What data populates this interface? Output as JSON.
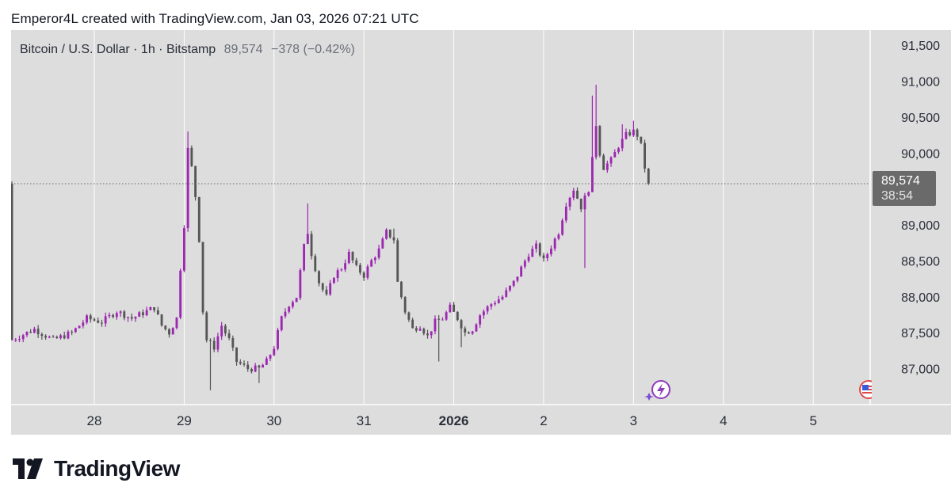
{
  "attribution": "Emperor4L created with TradingView.com, Jan 03, 2026 07:21 UTC",
  "legend": {
    "symbol": "Bitcoin / U.S. Dollar · 1h · Bitstamp",
    "last": "89,574",
    "change": "−378 (−0.42%)"
  },
  "price_tag": {
    "price": "89,574",
    "countdown": "38:54"
  },
  "brand": {
    "name": "TradingView"
  },
  "icons": {
    "bolt": "lightning-bolt-icon",
    "flag": "us-flag-icon",
    "logo": "tradingview-logo-icon"
  },
  "colors": {
    "up": "#9c27b0",
    "down": "#555555",
    "background": "#dddddd",
    "price_line": "#666666"
  },
  "chart_data": {
    "type": "candlestick",
    "ylim": [
      86500,
      91700
    ],
    "y_ticks": [
      {
        "value": 87000,
        "label": "87,000"
      },
      {
        "value": 87500,
        "label": "87,500"
      },
      {
        "value": 88000,
        "label": "88,000"
      },
      {
        "value": 88500,
        "label": "88,500"
      },
      {
        "value": 89000,
        "label": "89,000"
      },
      {
        "value": 89500,
        "label": ""
      },
      {
        "value": 90000,
        "label": "90,000"
      },
      {
        "value": 90500,
        "label": "90,500"
      },
      {
        "value": 91000,
        "label": "91,000"
      },
      {
        "value": 91500,
        "label": "91,500"
      }
    ],
    "x_ticks": [
      {
        "label": "28",
        "hour": 0,
        "bold": false
      },
      {
        "label": "29",
        "hour": 24,
        "bold": false
      },
      {
        "label": "30",
        "hour": 48,
        "bold": false
      },
      {
        "label": "31",
        "hour": 72,
        "bold": false
      },
      {
        "label": "2026",
        "hour": 96,
        "bold": true
      },
      {
        "label": "2",
        "hour": 120,
        "bold": false
      },
      {
        "label": "3",
        "hour": 144,
        "bold": false
      },
      {
        "label": "4",
        "hour": 168,
        "bold": false
      },
      {
        "label": "5",
        "hour": 192,
        "bold": false
      }
    ],
    "current_price": 89574,
    "anchors": [
      [
        -22,
        87400
      ],
      [
        -16,
        87550
      ],
      [
        -11,
        87400
      ],
      [
        -6,
        87500
      ],
      [
        -2,
        87700
      ],
      [
        2,
        87650
      ],
      [
        6,
        87800
      ],
      [
        10,
        87700
      ],
      [
        14,
        87800
      ],
      [
        16,
        87850
      ],
      [
        18,
        87600
      ],
      [
        20,
        87500
      ],
      [
        22,
        87700
      ],
      [
        23,
        88400
      ],
      [
        24,
        89000
      ],
      [
        25,
        90050
      ],
      [
        26,
        89800
      ],
      [
        27,
        89400
      ],
      [
        28,
        88800
      ],
      [
        29,
        87800
      ],
      [
        30,
        87400
      ],
      [
        32,
        87300
      ],
      [
        34,
        87600
      ],
      [
        36,
        87400
      ],
      [
        38,
        87100
      ],
      [
        41,
        87000
      ],
      [
        44,
        87000
      ],
      [
        46,
        87100
      ],
      [
        48,
        87300
      ],
      [
        50,
        87700
      ],
      [
        52,
        87900
      ],
      [
        54,
        88000
      ],
      [
        56,
        88700
      ],
      [
        57,
        88900
      ],
      [
        58,
        88600
      ],
      [
        60,
        88200
      ],
      [
        62,
        88000
      ],
      [
        64,
        88300
      ],
      [
        66,
        88400
      ],
      [
        68,
        88600
      ],
      [
        70,
        88400
      ],
      [
        72,
        88300
      ],
      [
        74,
        88500
      ],
      [
        76,
        88650
      ],
      [
        78,
        88900
      ],
      [
        80,
        88800
      ],
      [
        81,
        88200
      ],
      [
        83,
        87800
      ],
      [
        85,
        87550
      ],
      [
        87,
        87600
      ],
      [
        89,
        87450
      ],
      [
        91,
        87650
      ],
      [
        93,
        87700
      ],
      [
        95,
        87850
      ],
      [
        97,
        87700
      ],
      [
        99,
        87500
      ],
      [
        101,
        87550
      ],
      [
        103,
        87750
      ],
      [
        106,
        87900
      ],
      [
        109,
        88000
      ],
      [
        112,
        88200
      ],
      [
        114,
        88400
      ],
      [
        116,
        88600
      ],
      [
        118,
        88700
      ],
      [
        120,
        88500
      ],
      [
        122,
        88700
      ],
      [
        124,
        88900
      ],
      [
        126,
        89300
      ],
      [
        128,
        89500
      ],
      [
        130,
        89250
      ],
      [
        132,
        89500
      ],
      [
        133,
        89900
      ],
      [
        134,
        90400
      ],
      [
        135,
        90000
      ],
      [
        136,
        89800
      ],
      [
        138,
        89900
      ],
      [
        140,
        90100
      ],
      [
        142,
        90250
      ],
      [
        144,
        90300
      ],
      [
        145,
        90250
      ],
      [
        146,
        90100
      ],
      [
        147,
        89800
      ],
      [
        148,
        89574
      ]
    ],
    "spikes": [
      {
        "hour": 25,
        "high": 90300
      },
      {
        "hour": 31,
        "low": 86700
      },
      {
        "hour": 44,
        "low": 86800
      },
      {
        "hour": 57,
        "high": 89300
      },
      {
        "hour": 80,
        "high": 88950
      },
      {
        "hour": 92,
        "low": 87100
      },
      {
        "hour": 98,
        "low": 87300
      },
      {
        "hour": 131,
        "low": 88400
      },
      {
        "hour": 133,
        "high": 90800
      },
      {
        "hour": 134,
        "high": 90950
      },
      {
        "hour": 136,
        "low": 89800
      },
      {
        "hour": 141,
        "high": 90400
      },
      {
        "hour": 144,
        "high": 90450
      }
    ]
  }
}
